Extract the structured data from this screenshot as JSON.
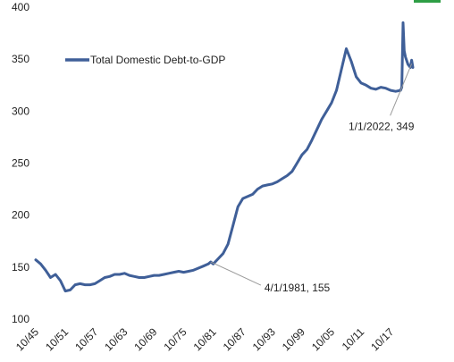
{
  "chart_data": {
    "type": "line",
    "title": "",
    "xlabel": "",
    "ylabel": "",
    "ylim": [
      100,
      400
    ],
    "y_ticks": [
      100,
      150,
      200,
      250,
      300,
      350,
      400
    ],
    "x_range": [
      "10/45",
      "4/22"
    ],
    "x_ticks": [
      "10/45",
      "10/51",
      "10/57",
      "10/63",
      "10/69",
      "10/75",
      "10/81",
      "10/87",
      "10/93",
      "10/99",
      "10/05",
      "10/11",
      "10/17"
    ],
    "grid": false,
    "legend": "top-left",
    "line_color": "#3f5f98",
    "accent_color": "#2e9e45",
    "series": [
      {
        "name": "Total Domestic Debt-to-GDP",
        "points": [
          [
            "10/45",
            157
          ],
          [
            "10/46",
            153
          ],
          [
            "10/47",
            147
          ],
          [
            "10/48",
            140
          ],
          [
            "10/49",
            143
          ],
          [
            "10/50",
            137
          ],
          [
            "10/51",
            127
          ],
          [
            "10/52",
            128
          ],
          [
            "10/53",
            133
          ],
          [
            "10/54",
            134
          ],
          [
            "10/55",
            133
          ],
          [
            "10/56",
            133
          ],
          [
            "10/57",
            134
          ],
          [
            "10/58",
            137
          ],
          [
            "10/59",
            140
          ],
          [
            "10/60",
            141
          ],
          [
            "10/61",
            143
          ],
          [
            "10/62",
            143
          ],
          [
            "10/63",
            144
          ],
          [
            "10/64",
            142
          ],
          [
            "10/65",
            141
          ],
          [
            "10/66",
            140
          ],
          [
            "10/67",
            140
          ],
          [
            "10/68",
            141
          ],
          [
            "10/69",
            142
          ],
          [
            "10/70",
            142
          ],
          [
            "10/71",
            143
          ],
          [
            "10/72",
            144
          ],
          [
            "10/73",
            145
          ],
          [
            "10/74",
            146
          ],
          [
            "10/75",
            145
          ],
          [
            "10/76",
            146
          ],
          [
            "10/77",
            147
          ],
          [
            "10/78",
            149
          ],
          [
            "10/79",
            151
          ],
          [
            "10/80",
            153
          ],
          [
            "4/81",
            155
          ],
          [
            "10/81",
            153
          ],
          [
            "10/82",
            158
          ],
          [
            "10/83",
            163
          ],
          [
            "10/84",
            172
          ],
          [
            "10/85",
            190
          ],
          [
            "10/86",
            208
          ],
          [
            "10/87",
            216
          ],
          [
            "10/88",
            218
          ],
          [
            "10/89",
            220
          ],
          [
            "10/90",
            225
          ],
          [
            "10/91",
            228
          ],
          [
            "10/92",
            229
          ],
          [
            "10/93",
            230
          ],
          [
            "10/94",
            232
          ],
          [
            "10/95",
            235
          ],
          [
            "10/96",
            238
          ],
          [
            "10/97",
            242
          ],
          [
            "10/98",
            250
          ],
          [
            "10/99",
            258
          ],
          [
            "10/00",
            263
          ],
          [
            "10/01",
            272
          ],
          [
            "10/02",
            282
          ],
          [
            "10/03",
            292
          ],
          [
            "10/04",
            300
          ],
          [
            "10/05",
            308
          ],
          [
            "10/06",
            320
          ],
          [
            "10/07",
            340
          ],
          [
            "10/08",
            360
          ],
          [
            "10/09",
            348
          ],
          [
            "10/10",
            333
          ],
          [
            "10/11",
            327
          ],
          [
            "10/12",
            325
          ],
          [
            "10/13",
            322
          ],
          [
            "10/14",
            321
          ],
          [
            "10/15",
            323
          ],
          [
            "10/16",
            322
          ],
          [
            "10/17",
            320
          ],
          [
            "10/18",
            319
          ],
          [
            "10/19",
            320
          ],
          [
            "1/20",
            323
          ],
          [
            "4/20",
            385
          ],
          [
            "7/20",
            358
          ],
          [
            "10/20",
            352
          ],
          [
            "4/21",
            345
          ],
          [
            "10/21",
            342
          ],
          [
            "1/22",
            349
          ],
          [
            "4/22",
            342
          ]
        ]
      }
    ],
    "annotations": [
      {
        "text": "4/1/1981, 155",
        "x": "4/81",
        "y": 155
      },
      {
        "text": "1/1/2022, 349",
        "x": "1/22",
        "y": 349
      }
    ]
  }
}
